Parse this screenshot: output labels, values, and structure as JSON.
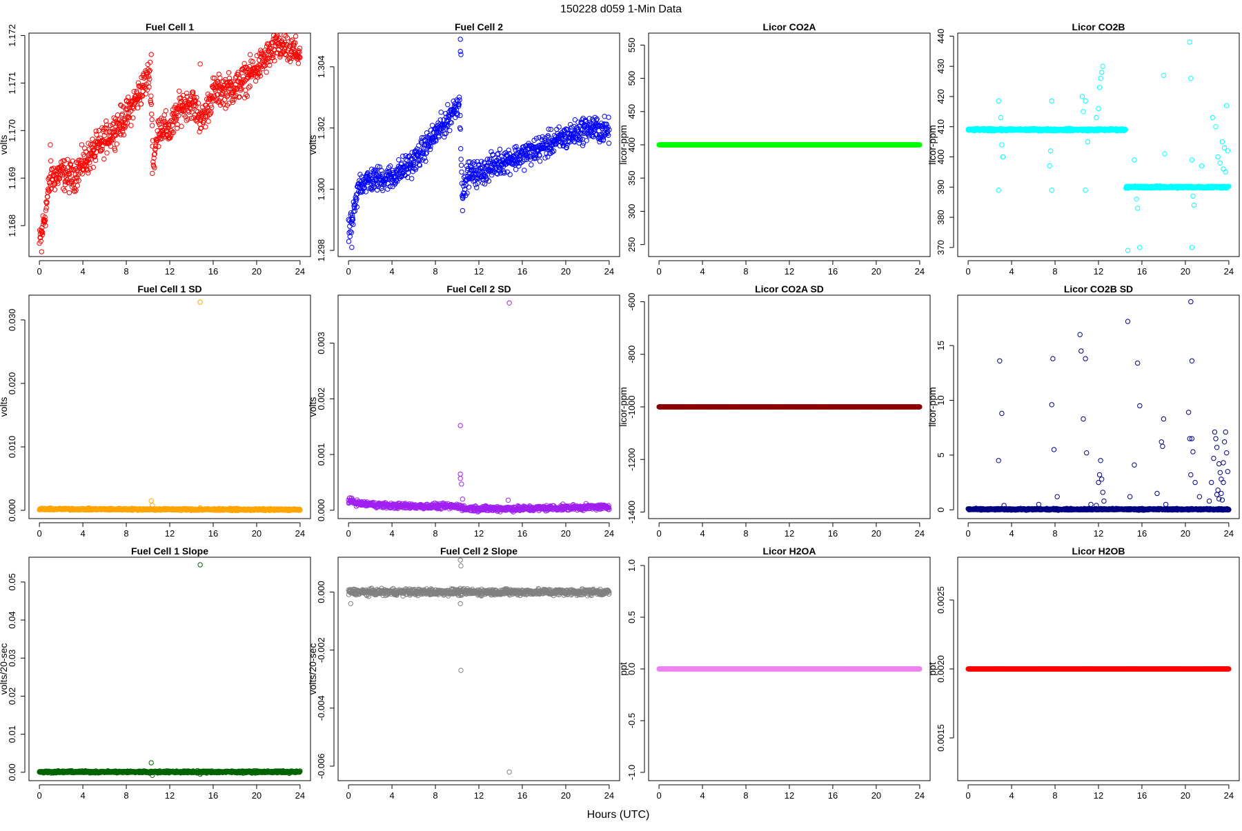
{
  "figure": {
    "title": "150228    d059    1-Min Data",
    "xlabel": "Hours (UTC)"
  },
  "chart_data": [
    {
      "type": "scatter",
      "title": "Fuel Cell 1",
      "ylabel": "volts",
      "color": "#ff0000",
      "xlim": [
        -0.96,
        24.96
      ],
      "ylim": [
        1.16735,
        1.17205
      ],
      "xticks": [
        0,
        4,
        8,
        12,
        16,
        20,
        24
      ],
      "yticks": [
        1.168,
        1.169,
        1.17,
        1.171,
        1.172
      ],
      "ytick_labels": [
        "1.168",
        "1.169",
        "1.170",
        "1.171",
        "1.172"
      ],
      "trend": [
        [
          0,
          1.1676
        ],
        [
          0.5,
          1.1682
        ],
        [
          1,
          1.169
        ],
        [
          2,
          1.1691
        ],
        [
          3,
          1.169
        ],
        [
          4,
          1.1693
        ],
        [
          6,
          1.1698
        ],
        [
          8,
          1.1703
        ],
        [
          9,
          1.1707
        ],
        [
          10.2,
          1.1712
        ],
        [
          10.5,
          1.1693
        ],
        [
          11,
          1.1701
        ],
        [
          12,
          1.17
        ],
        [
          13,
          1.1705
        ],
        [
          14,
          1.1706
        ],
        [
          15,
          1.1702
        ],
        [
          16,
          1.1708
        ],
        [
          18,
          1.1709
        ],
        [
          20,
          1.1713
        ],
        [
          22,
          1.1718
        ],
        [
          24,
          1.1716
        ]
      ],
      "noise": 0.00028,
      "outliers": [
        [
          10.3,
          1.1716
        ],
        [
          10.4,
          1.1691
        ],
        [
          14.8,
          1.1714
        ],
        [
          0.2,
          1.16745
        ],
        [
          1,
          1.1697
        ]
      ]
    },
    {
      "type": "scatter",
      "title": "Fuel Cell 2",
      "ylabel": "volts",
      "color": "#0000ff",
      "xlim": [
        -0.96,
        24.96
      ],
      "ylim": [
        1.2978,
        1.3051
      ],
      "xticks": [
        0,
        4,
        8,
        12,
        16,
        20,
        24
      ],
      "yticks": [
        1.298,
        1.3,
        1.302,
        1.304
      ],
      "ytick_labels": [
        "1.298",
        "1.300",
        "1.302",
        "1.304"
      ],
      "trend": [
        [
          0,
          1.2985
        ],
        [
          0.5,
          1.2992
        ],
        [
          1,
          1.3002
        ],
        [
          2,
          1.3003
        ],
        [
          4,
          1.3004
        ],
        [
          6,
          1.3009
        ],
        [
          8,
          1.3018
        ],
        [
          9,
          1.3022
        ],
        [
          10.2,
          1.3029
        ],
        [
          10.5,
          1.2998
        ],
        [
          11,
          1.3005
        ],
        [
          12,
          1.3005
        ],
        [
          14,
          1.3009
        ],
        [
          16,
          1.3011
        ],
        [
          18,
          1.3014
        ],
        [
          20,
          1.3017
        ],
        [
          22,
          1.302
        ],
        [
          24,
          1.3019
        ]
      ],
      "noise": 0.00035,
      "outliers": [
        [
          10.3,
          1.3049
        ],
        [
          10.35,
          1.3044
        ],
        [
          10.3,
          1.3045
        ],
        [
          10.5,
          1.2993
        ],
        [
          0.3,
          1.2981
        ]
      ]
    },
    {
      "type": "scatter",
      "title": "Licor CO2A",
      "ylabel": "licor-ppm",
      "color": "#00ff00",
      "xlim": [
        -0.96,
        24.96
      ],
      "ylim": [
        232,
        568
      ],
      "xticks": [
        0,
        4,
        8,
        12,
        16,
        20,
        24
      ],
      "yticks": [
        250,
        300,
        350,
        400,
        450,
        500,
        550
      ],
      "ytick_labels": [
        "250",
        "300",
        "350",
        "400",
        "450",
        "500",
        "550"
      ],
      "trend": [
        [
          0,
          400
        ],
        [
          24,
          400
        ]
      ],
      "noise": 0,
      "outliers": [],
      "dense": true
    },
    {
      "type": "scatter",
      "title": "Licor CO2B",
      "ylabel": "licor-ppm",
      "color": "#00ffff",
      "xlim": [
        -0.96,
        24.96
      ],
      "ylim": [
        367,
        441
      ],
      "xticks": [
        0,
        4,
        8,
        12,
        16,
        20,
        24
      ],
      "yticks": [
        370,
        380,
        390,
        400,
        410,
        420,
        430,
        440
      ],
      "ytick_labels": [
        "370",
        "380",
        "390",
        "400",
        "410",
        "420",
        "430",
        "440"
      ],
      "segments": [
        [
          0,
          14.5,
          409
        ],
        [
          14.5,
          21.5,
          390
        ],
        [
          21.5,
          24,
          390
        ]
      ],
      "noise": 0.3,
      "outliers": [
        [
          2.8,
          418.5
        ],
        [
          2.8,
          389
        ],
        [
          3,
          413
        ],
        [
          3.1,
          404
        ],
        [
          3.2,
          400
        ],
        [
          7.7,
          418.5
        ],
        [
          7.7,
          389
        ],
        [
          7.6,
          402
        ],
        [
          7.5,
          397
        ],
        [
          10.8,
          418.5
        ],
        [
          10.8,
          389
        ],
        [
          10.5,
          420
        ],
        [
          10.6,
          415
        ],
        [
          11,
          405
        ],
        [
          11.8,
          413
        ],
        [
          12.1,
          423
        ],
        [
          12.2,
          426
        ],
        [
          12.3,
          428
        ],
        [
          12.4,
          430
        ],
        [
          12.0,
          416
        ],
        [
          14.7,
          369
        ],
        [
          15.3,
          399
        ],
        [
          15.5,
          386
        ],
        [
          15.6,
          383
        ],
        [
          15.8,
          370
        ],
        [
          18,
          427
        ],
        [
          18.1,
          401
        ],
        [
          20.4,
          438
        ],
        [
          20.5,
          426
        ],
        [
          20.6,
          399
        ],
        [
          20.7,
          387
        ],
        [
          20.8,
          384
        ],
        [
          20.6,
          370
        ],
        [
          21.5,
          397
        ],
        [
          22.5,
          413
        ],
        [
          22.8,
          410
        ],
        [
          23.0,
          400
        ],
        [
          23.2,
          398
        ],
        [
          23.4,
          405
        ],
        [
          23.6,
          403
        ],
        [
          23.8,
          417
        ],
        [
          23.9,
          402
        ],
        [
          23.7,
          395
        ],
        [
          23.5,
          396
        ]
      ]
    },
    {
      "type": "scatter",
      "title": "Fuel Cell 1 SD",
      "ylabel": "volts",
      "color": "#ffa500",
      "xlim": [
        -0.96,
        24.96
      ],
      "ylim": [
        -0.0013,
        0.0339
      ],
      "xticks": [
        0,
        4,
        8,
        12,
        16,
        20,
        24
      ],
      "yticks": [
        0,
        0.01,
        0.02,
        0.03
      ],
      "ytick_labels": [
        "0.000",
        "0.010",
        "0.020",
        "0.030"
      ],
      "trend": [
        [
          0,
          0.0002
        ],
        [
          24,
          0.0001
        ]
      ],
      "noise": 0.00012,
      "outliers": [
        [
          14.8,
          0.0328
        ],
        [
          10.3,
          0.0015
        ],
        [
          10.4,
          0.0008
        ],
        [
          14.8,
          0.0004
        ]
      ]
    },
    {
      "type": "scatter",
      "title": "Fuel Cell 2 SD",
      "ylabel": "volts",
      "color": "#a020f0",
      "xlim": [
        -0.96,
        24.96
      ],
      "ylim": [
        -0.00015,
        0.00386
      ],
      "xticks": [
        0,
        4,
        8,
        12,
        16,
        20,
        24
      ],
      "yticks": [
        0,
        0.001,
        0.002,
        0.003
      ],
      "ytick_labels": [
        "0.000",
        "0.001",
        "0.002",
        "0.003"
      ],
      "trend": [
        [
          0,
          0.00018
        ],
        [
          1,
          0.00012
        ],
        [
          4,
          8e-05
        ],
        [
          8,
          7e-05
        ],
        [
          10.3,
          7e-05
        ],
        [
          10.6,
          3e-05
        ],
        [
          16,
          3e-05
        ],
        [
          24,
          6e-05
        ]
      ],
      "noise": 4e-05,
      "outliers": [
        [
          14.8,
          0.00372
        ],
        [
          10.3,
          0.00152
        ],
        [
          10.3,
          0.00065
        ],
        [
          10.3,
          0.00057
        ],
        [
          10.4,
          0.00047
        ],
        [
          14.7,
          0.00018
        ],
        [
          10.5,
          0.0002
        ]
      ]
    },
    {
      "type": "scatter",
      "title": "Licor CO2A SD",
      "ylabel": "licor-ppm",
      "color": "#8b0000",
      "xlim": [
        -0.96,
        24.96
      ],
      "ylim": [
        -1425,
        -575
      ],
      "xticks": [
        0,
        4,
        8,
        12,
        16,
        20,
        24
      ],
      "yticks": [
        -1400,
        -1200,
        -1000,
        -800,
        -600
      ],
      "ytick_labels": [
        "-1400",
        "-1200",
        "-1000",
        "-800",
        "-600"
      ],
      "trend": [
        [
          0,
          -1000
        ],
        [
          24,
          -1000
        ]
      ],
      "noise": 0,
      "outliers": [],
      "dense": true
    },
    {
      "type": "scatter",
      "title": "Licor CO2B SD",
      "ylabel": "licor-ppm",
      "color": "#000080",
      "xlim": [
        -0.96,
        24.96
      ],
      "ylim": [
        -0.8,
        19.6
      ],
      "xticks": [
        0,
        4,
        8,
        12,
        16,
        20,
        24
      ],
      "yticks": [
        0,
        5,
        10,
        15
      ],
      "ytick_labels": [
        "0",
        "5",
        "10",
        "15"
      ],
      "trend": [
        [
          0,
          0.05
        ],
        [
          24,
          0.05
        ]
      ],
      "noise": 0.06,
      "outliers": [
        [
          2.8,
          4.5
        ],
        [
          2.9,
          13.6
        ],
        [
          3.1,
          8.8
        ],
        [
          3.3,
          0.4
        ],
        [
          6.5,
          0.5
        ],
        [
          7.7,
          9.6
        ],
        [
          7.8,
          13.8
        ],
        [
          7.9,
          5.5
        ],
        [
          8.2,
          1.2
        ],
        [
          10.3,
          16
        ],
        [
          10.4,
          14.5
        ],
        [
          10.6,
          8.3
        ],
        [
          10.8,
          13.8
        ],
        [
          10.9,
          5.2
        ],
        [
          11.3,
          0.5
        ],
        [
          11.8,
          0.4
        ],
        [
          12.0,
          2.5
        ],
        [
          12.1,
          3.2
        ],
        [
          12.2,
          4.5
        ],
        [
          12.3,
          2.8
        ],
        [
          12.4,
          1.6
        ],
        [
          12.5,
          0.8
        ],
        [
          14.7,
          17.2
        ],
        [
          14.9,
          1.2
        ],
        [
          15.3,
          4.1
        ],
        [
          15.6,
          13.4
        ],
        [
          15.8,
          9.5
        ],
        [
          17.4,
          1.5
        ],
        [
          17.8,
          6.2
        ],
        [
          17.9,
          5.8
        ],
        [
          18.0,
          8.3
        ],
        [
          18.2,
          0.5
        ],
        [
          20.3,
          8.9
        ],
        [
          20.5,
          19
        ],
        [
          20.6,
          13.6
        ],
        [
          20.4,
          6.5
        ],
        [
          20.6,
          6.5
        ],
        [
          20.5,
          3.2
        ],
        [
          20.7,
          5.3
        ],
        [
          20.9,
          2.5
        ],
        [
          21.3,
          1.2
        ],
        [
          22.2,
          0.8
        ],
        [
          22.4,
          2.5
        ],
        [
          22.6,
          4.7
        ],
        [
          22.7,
          7.1
        ],
        [
          22.8,
          6.5
        ],
        [
          22.9,
          5.7
        ],
        [
          23.0,
          1.8
        ],
        [
          23.1,
          4.2
        ],
        [
          23.2,
          3.4
        ],
        [
          23.3,
          1.5
        ],
        [
          23.4,
          0.9
        ],
        [
          23.5,
          2.5
        ],
        [
          23.6,
          6.2
        ],
        [
          23.7,
          7.1
        ],
        [
          23.8,
          5.2
        ],
        [
          23.9,
          3.5
        ],
        [
          23.5,
          4.3
        ],
        [
          23.3,
          2.8
        ],
        [
          23.1,
          1.0
        ],
        [
          22.9,
          1.4
        ]
      ]
    },
    {
      "type": "scatter",
      "title": "Fuel Cell 1 Slope",
      "ylabel": "volts/20-sec",
      "color": "#006400",
      "xlim": [
        -0.96,
        24.96
      ],
      "ylim": [
        -0.0022,
        0.0565
      ],
      "xticks": [
        0,
        4,
        8,
        12,
        16,
        20,
        24
      ],
      "yticks": [
        0,
        0.01,
        0.02,
        0.03,
        0.04,
        0.05
      ],
      "ytick_labels": [
        "0.00",
        "0.01",
        "0.02",
        "0.03",
        "0.04",
        "0.05"
      ],
      "trend": [
        [
          0,
          0.0001
        ],
        [
          24,
          0.0001
        ]
      ],
      "noise": 0.00022,
      "outliers": [
        [
          14.8,
          0.0545
        ],
        [
          10.3,
          0.0025
        ],
        [
          10.4,
          -0.0008
        ],
        [
          14.8,
          -0.0005
        ]
      ]
    },
    {
      "type": "scatter",
      "title": "Fuel Cell 2 Slope",
      "ylabel": "volts/20-sec",
      "color": "#808080",
      "xlim": [
        -0.96,
        24.96
      ],
      "ylim": [
        -0.0065,
        0.0012
      ],
      "xticks": [
        0,
        4,
        8,
        12,
        16,
        20,
        24
      ],
      "yticks": [
        -0.006,
        -0.004,
        -0.002,
        0
      ],
      "ytick_labels": [
        "-0.006",
        "-0.004",
        "-0.002",
        "0.000"
      ],
      "trend": [
        [
          0,
          0
        ],
        [
          24,
          0
        ]
      ],
      "noise": 9e-05,
      "outliers": [
        [
          10.3,
          0.0011
        ],
        [
          10.35,
          0.0009
        ],
        [
          10.3,
          -0.0004
        ],
        [
          10.35,
          -0.0027
        ],
        [
          14.8,
          -0.0062
        ],
        [
          0.2,
          -0.0004
        ]
      ]
    },
    {
      "type": "scatter",
      "title": "Licor H2OA",
      "ylabel": "ppt",
      "color": "#ee82ee",
      "xlim": [
        -0.96,
        24.96
      ],
      "ylim": [
        -1.08,
        1.08
      ],
      "xticks": [
        0,
        4,
        8,
        12,
        16,
        20,
        24
      ],
      "yticks": [
        -1,
        -0.5,
        0,
        0.5,
        1
      ],
      "ytick_labels": [
        "-1.0",
        "-0.5",
        "0.0",
        "0.5",
        "1.0"
      ],
      "trend": [
        [
          0,
          0
        ],
        [
          24,
          0
        ]
      ],
      "noise": 0,
      "outliers": [],
      "dense": true
    },
    {
      "type": "scatter",
      "title": "Licor H2OB",
      "ylabel": "ppt",
      "color": "#ff0000",
      "xlim": [
        -0.96,
        24.96
      ],
      "ylim": [
        0.00119,
        0.00281
      ],
      "xticks": [
        0,
        4,
        8,
        12,
        16,
        20,
        24
      ],
      "yticks": [
        0.0015,
        0.002,
        0.0025
      ],
      "ytick_labels": [
        "0.0015",
        "0.0020",
        "0.0025"
      ],
      "trend": [
        [
          0,
          0.002
        ],
        [
          24,
          0.002
        ]
      ],
      "noise": 0,
      "outliers": [],
      "dense": true
    }
  ]
}
